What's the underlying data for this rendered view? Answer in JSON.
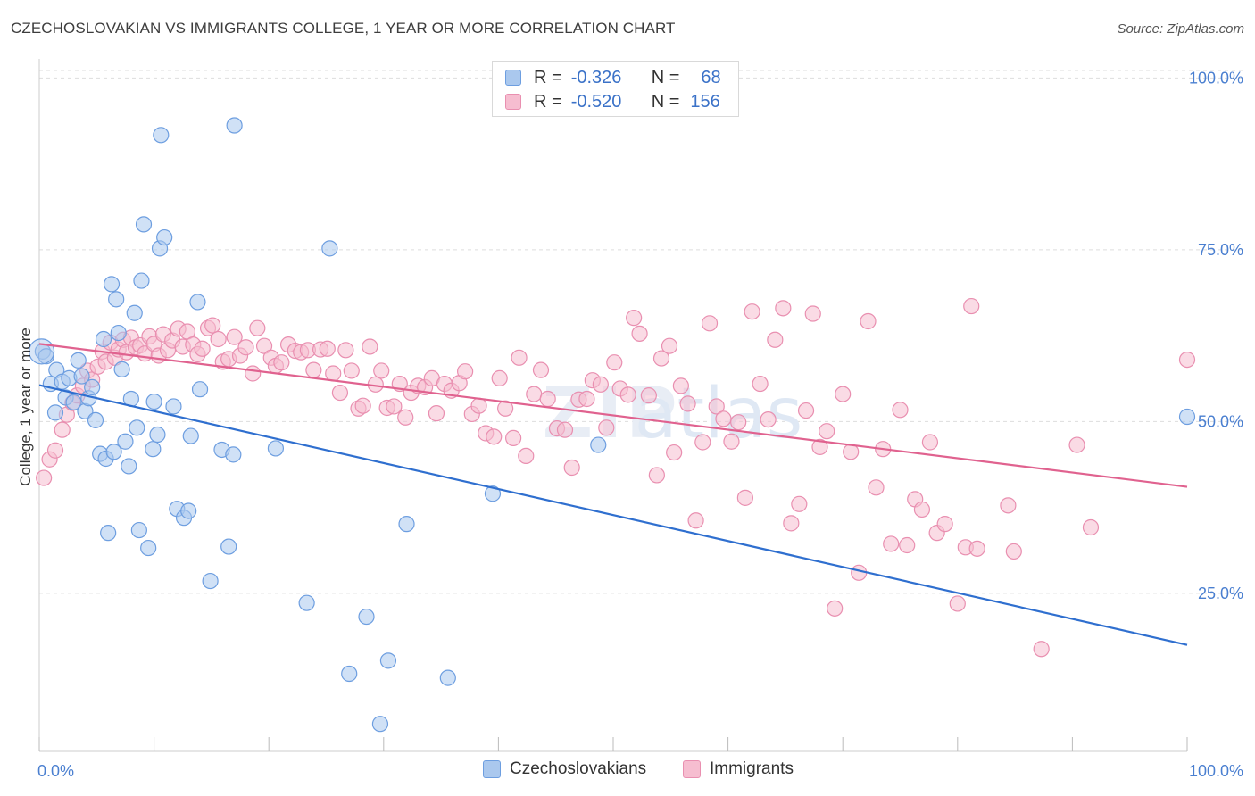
{
  "header": {
    "title": "CZECHOSLOVAKIAN VS IMMIGRANTS COLLEGE, 1 YEAR OR MORE CORRELATION CHART",
    "source": "Source: ZipAtlas.com"
  },
  "legend": {
    "rows": [
      {
        "r_label": "R =",
        "r_value": "-0.326",
        "n_label": "N =",
        "n_value": "68"
      },
      {
        "r_label": "R =",
        "r_value": "-0.520",
        "n_label": "N =",
        "n_value": "156"
      }
    ]
  },
  "bottom_legend": [
    "Czechoslovakians",
    "Immigrants"
  ],
  "colors": {
    "blue_fill": "#aac8ee",
    "blue_stroke": "#6d9ee0",
    "blue_line": "#2f6fcf",
    "pink_fill": "#f6bdd0",
    "pink_stroke": "#e98fb0",
    "pink_line": "#e0628f",
    "tick_text": "#4a7fd0",
    "grid": "#dddddd"
  },
  "chart_data": {
    "type": "scatter",
    "ylabel": "College, 1 year or more",
    "xlim": [
      0,
      100
    ],
    "ylim": [
      2,
      102
    ],
    "x_ticks": [
      "0.0%",
      "100.0%"
    ],
    "y_ticks": [
      {
        "value": 100,
        "label": "100.0%"
      },
      {
        "value": 75,
        "label": "75.0%"
      },
      {
        "value": 50,
        "label": "50.0%"
      },
      {
        "value": 25,
        "label": "25.0%"
      }
    ],
    "grid": true,
    "series": [
      {
        "name": "Czechoslovakians",
        "color": "blue",
        "trend": {
          "x0": 0,
          "y0": 55.3,
          "x1": 100,
          "y1": 17.5
        },
        "points": [
          [
            0.3,
            60.2
          ],
          [
            0.6,
            59.5
          ],
          [
            1.0,
            55.5
          ],
          [
            1.4,
            51.3
          ],
          [
            1.5,
            57.5
          ],
          [
            2.0,
            55.8
          ],
          [
            2.3,
            53.5
          ],
          [
            2.6,
            56.3
          ],
          [
            3.0,
            52.8
          ],
          [
            3.4,
            58.9
          ],
          [
            3.7,
            56.6
          ],
          [
            4.0,
            51.5
          ],
          [
            4.3,
            53.4
          ],
          [
            4.6,
            55.0
          ],
          [
            4.9,
            50.2
          ],
          [
            5.3,
            45.3
          ],
          [
            5.6,
            62.0
          ],
          [
            5.8,
            44.6
          ],
          [
            6.0,
            33.8
          ],
          [
            6.3,
            70.0
          ],
          [
            6.5,
            45.6
          ],
          [
            6.7,
            67.8
          ],
          [
            6.9,
            62.9
          ],
          [
            7.2,
            57.6
          ],
          [
            7.5,
            47.1
          ],
          [
            7.8,
            43.5
          ],
          [
            8.0,
            53.3
          ],
          [
            8.3,
            65.8
          ],
          [
            8.5,
            49.1
          ],
          [
            8.7,
            34.2
          ],
          [
            8.9,
            70.5
          ],
          [
            9.1,
            78.7
          ],
          [
            9.5,
            31.6
          ],
          [
            9.9,
            46.0
          ],
          [
            10.0,
            52.9
          ],
          [
            10.3,
            48.1
          ],
          [
            10.5,
            75.2
          ],
          [
            10.6,
            91.7
          ],
          [
            10.9,
            76.8
          ],
          [
            11.7,
            52.2
          ],
          [
            12.0,
            37.3
          ],
          [
            12.6,
            36.0
          ],
          [
            13.0,
            37.0
          ],
          [
            13.2,
            47.9
          ],
          [
            13.8,
            67.4
          ],
          [
            14.0,
            54.7
          ],
          [
            14.9,
            26.8
          ],
          [
            15.9,
            45.9
          ],
          [
            16.5,
            31.8
          ],
          [
            16.9,
            45.2
          ],
          [
            17.0,
            93.1
          ],
          [
            20.6,
            46.1
          ],
          [
            23.3,
            23.6
          ],
          [
            25.3,
            75.2
          ],
          [
            27.0,
            13.3
          ],
          [
            28.5,
            21.6
          ],
          [
            29.7,
            6.0
          ],
          [
            30.4,
            15.2
          ],
          [
            32.0,
            35.1
          ],
          [
            35.6,
            12.7
          ],
          [
            39.5,
            39.5
          ],
          [
            48.7,
            46.6
          ],
          [
            100.0,
            50.7
          ]
        ]
      },
      {
        "name": "Immigrants",
        "color": "pink",
        "trend": {
          "x0": 0,
          "y0": 61.3,
          "x1": 100,
          "y1": 40.5
        },
        "points": [
          [
            0.4,
            41.8
          ],
          [
            0.9,
            44.5
          ],
          [
            1.4,
            45.8
          ],
          [
            2.0,
            48.8
          ],
          [
            2.4,
            51.0
          ],
          [
            2.9,
            52.7
          ],
          [
            3.3,
            53.8
          ],
          [
            3.8,
            55.2
          ],
          [
            4.2,
            57.4
          ],
          [
            4.6,
            56.1
          ],
          [
            5.1,
            58.0
          ],
          [
            5.5,
            60.2
          ],
          [
            5.8,
            58.7
          ],
          [
            6.2,
            61.5
          ],
          [
            6.6,
            59.3
          ],
          [
            6.9,
            60.5
          ],
          [
            7.3,
            61.9
          ],
          [
            7.6,
            60.1
          ],
          [
            8.0,
            62.2
          ],
          [
            8.4,
            60.8
          ],
          [
            8.8,
            61.1
          ],
          [
            9.2,
            59.9
          ],
          [
            9.6,
            62.4
          ],
          [
            10.0,
            61.3
          ],
          [
            10.4,
            59.6
          ],
          [
            10.8,
            62.7
          ],
          [
            11.2,
            60.4
          ],
          [
            11.6,
            61.8
          ],
          [
            12.1,
            63.5
          ],
          [
            12.5,
            60.9
          ],
          [
            12.9,
            63.1
          ],
          [
            13.4,
            61.2
          ],
          [
            13.8,
            59.8
          ],
          [
            14.2,
            60.6
          ],
          [
            14.7,
            63.6
          ],
          [
            15.1,
            64.0
          ],
          [
            15.6,
            62.0
          ],
          [
            16.0,
            58.7
          ],
          [
            16.5,
            59.1
          ],
          [
            17.0,
            62.3
          ],
          [
            17.5,
            59.6
          ],
          [
            18.0,
            60.8
          ],
          [
            18.6,
            57.0
          ],
          [
            19.0,
            63.6
          ],
          [
            19.6,
            61.0
          ],
          [
            20.2,
            59.3
          ],
          [
            20.6,
            58.1
          ],
          [
            21.1,
            58.6
          ],
          [
            21.7,
            61.2
          ],
          [
            22.3,
            60.3
          ],
          [
            22.8,
            60.1
          ],
          [
            23.4,
            60.4
          ],
          [
            23.9,
            57.5
          ],
          [
            24.5,
            60.5
          ],
          [
            25.1,
            60.6
          ],
          [
            25.6,
            57.0
          ],
          [
            26.2,
            54.2
          ],
          [
            26.7,
            60.4
          ],
          [
            27.2,
            57.4
          ],
          [
            27.8,
            51.9
          ],
          [
            28.2,
            52.3
          ],
          [
            28.8,
            60.9
          ],
          [
            29.3,
            55.4
          ],
          [
            29.8,
            57.4
          ],
          [
            30.3,
            52.0
          ],
          [
            30.9,
            52.2
          ],
          [
            31.4,
            55.5
          ],
          [
            31.9,
            50.6
          ],
          [
            32.4,
            54.2
          ],
          [
            33.0,
            55.2
          ],
          [
            33.6,
            55.0
          ],
          [
            34.2,
            56.3
          ],
          [
            34.6,
            51.2
          ],
          [
            35.3,
            55.5
          ],
          [
            35.9,
            54.5
          ],
          [
            36.6,
            55.6
          ],
          [
            37.1,
            57.3
          ],
          [
            37.7,
            51.1
          ],
          [
            38.3,
            52.3
          ],
          [
            38.9,
            48.3
          ],
          [
            39.6,
            47.8
          ],
          [
            40.1,
            56.3
          ],
          [
            40.6,
            51.9
          ],
          [
            41.3,
            47.6
          ],
          [
            41.8,
            59.3
          ],
          [
            42.4,
            45.0
          ],
          [
            43.1,
            54.0
          ],
          [
            43.7,
            57.5
          ],
          [
            44.3,
            53.3
          ],
          [
            45.1,
            49.0
          ],
          [
            45.8,
            48.8
          ],
          [
            46.4,
            43.3
          ],
          [
            47.0,
            53.2
          ],
          [
            47.7,
            53.3
          ],
          [
            48.2,
            56.0
          ],
          [
            48.9,
            55.4
          ],
          [
            49.4,
            49.1
          ],
          [
            50.1,
            58.6
          ],
          [
            50.6,
            54.8
          ],
          [
            51.3,
            53.9
          ],
          [
            51.8,
            65.1
          ],
          [
            52.3,
            62.8
          ],
          [
            53.1,
            53.8
          ],
          [
            53.8,
            42.2
          ],
          [
            54.2,
            59.2
          ],
          [
            54.9,
            61.0
          ],
          [
            55.3,
            45.5
          ],
          [
            55.9,
            55.2
          ],
          [
            56.5,
            52.6
          ],
          [
            57.2,
            35.6
          ],
          [
            57.8,
            47.0
          ],
          [
            58.4,
            64.3
          ],
          [
            59.0,
            52.2
          ],
          [
            59.6,
            50.4
          ],
          [
            60.3,
            47.1
          ],
          [
            60.9,
            49.9
          ],
          [
            61.5,
            38.9
          ],
          [
            62.1,
            66.0
          ],
          [
            62.8,
            55.5
          ],
          [
            63.5,
            50.3
          ],
          [
            64.1,
            61.9
          ],
          [
            64.8,
            66.5
          ],
          [
            65.5,
            35.2
          ],
          [
            66.2,
            38.0
          ],
          [
            66.8,
            51.6
          ],
          [
            67.4,
            65.7
          ],
          [
            68.0,
            46.3
          ],
          [
            68.6,
            48.6
          ],
          [
            69.3,
            22.8
          ],
          [
            70.0,
            54.0
          ],
          [
            70.7,
            45.6
          ],
          [
            71.4,
            28.0
          ],
          [
            72.2,
            64.6
          ],
          [
            72.9,
            40.4
          ],
          [
            73.5,
            46.0
          ],
          [
            74.2,
            32.2
          ],
          [
            75.0,
            51.7
          ],
          [
            75.6,
            32.0
          ],
          [
            76.3,
            38.7
          ],
          [
            76.9,
            37.2
          ],
          [
            77.6,
            47.0
          ],
          [
            78.2,
            33.8
          ],
          [
            78.9,
            35.1
          ],
          [
            80.0,
            23.5
          ],
          [
            80.7,
            31.7
          ],
          [
            81.2,
            66.8
          ],
          [
            81.7,
            31.5
          ],
          [
            84.4,
            37.8
          ],
          [
            84.9,
            31.1
          ],
          [
            87.3,
            16.9
          ],
          [
            90.4,
            46.6
          ],
          [
            91.6,
            34.6
          ],
          [
            100.0,
            59.0
          ]
        ]
      }
    ]
  }
}
